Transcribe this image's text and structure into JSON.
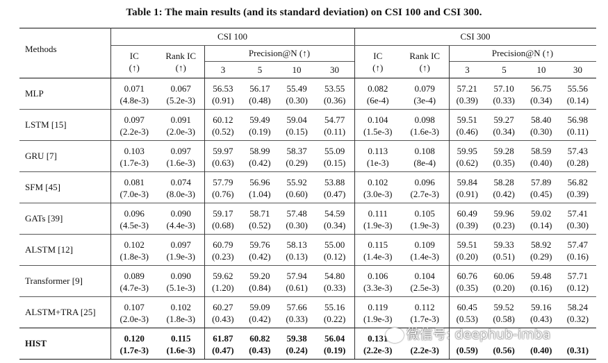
{
  "caption": "Table 1: The main results (and its standard deviation) on CSI 100 and CSI 300.",
  "header": {
    "methods": "Methods",
    "group1": "CSI 100",
    "group2": "CSI 300",
    "ic_line1": "IC",
    "ic_line2": "(↑)",
    "rankic_line1": "Rank IC",
    "rankic_line2": "(↑)",
    "precision": "Precision@N (↑)",
    "n": [
      "3",
      "5",
      "10",
      "30"
    ]
  },
  "rows": [
    {
      "method": "MLP",
      "vals": [
        [
          "0.071",
          "(4.8e-3)"
        ],
        [
          "0.067",
          "(5.2e-3)"
        ],
        [
          "56.53",
          "(0.91)"
        ],
        [
          "56.17",
          "(0.48)"
        ],
        [
          "55.49",
          "(0.30)"
        ],
        [
          "53.55",
          "(0.36)"
        ],
        [
          "0.082",
          "(6e-4)"
        ],
        [
          "0.079",
          "(3e-4)"
        ],
        [
          "57.21",
          "(0.39)"
        ],
        [
          "57.10",
          "(0.33)"
        ],
        [
          "56.75",
          "(0.34)"
        ],
        [
          "55.56",
          "(0.14)"
        ]
      ]
    },
    {
      "method": "LSTM [15]",
      "vals": [
        [
          "0.097",
          "(2.2e-3)"
        ],
        [
          "0.091",
          "(2.0e-3)"
        ],
        [
          "60.12",
          "(0.52)"
        ],
        [
          "59.49",
          "(0.19)"
        ],
        [
          "59.04",
          "(0.15)"
        ],
        [
          "54.77",
          "(0.11)"
        ],
        [
          "0.104",
          "(1.5e-3)"
        ],
        [
          "0.098",
          "(1.6e-3)"
        ],
        [
          "59.51",
          "(0.46)"
        ],
        [
          "59.27",
          "(0.34)"
        ],
        [
          "58.40",
          "(0.30)"
        ],
        [
          "56.98",
          "(0.11)"
        ]
      ]
    },
    {
      "method": "GRU [7]",
      "vals": [
        [
          "0.103",
          "(1.7e-3)"
        ],
        [
          "0.097",
          "(1.6e-3)"
        ],
        [
          "59.97",
          "(0.63)"
        ],
        [
          "58.99",
          "(0.42)"
        ],
        [
          "58.37",
          "(0.29)"
        ],
        [
          "55.09",
          "(0.15)"
        ],
        [
          "0.113",
          "(1e-3)"
        ],
        [
          "0.108",
          "(8e-4)"
        ],
        [
          "59.95",
          "(0.62)"
        ],
        [
          "59.28",
          "(0.35)"
        ],
        [
          "58.59",
          "(0.40)"
        ],
        [
          "57.43",
          "(0.28)"
        ]
      ]
    },
    {
      "method": "SFM [45]",
      "vals": [
        [
          "0.081",
          "(7.0e-3)"
        ],
        [
          "0.074",
          "(8.0e-3)"
        ],
        [
          "57.79",
          "(0.76)"
        ],
        [
          "56.96",
          "(1.04)"
        ],
        [
          "55.92",
          "(0.60)"
        ],
        [
          "53.88",
          "(0.47)"
        ],
        [
          "0.102",
          "(3.0e-3)"
        ],
        [
          "0.096",
          "(2.7e-3)"
        ],
        [
          "59.84",
          "(0.91)"
        ],
        [
          "58.28",
          "(0.42)"
        ],
        [
          "57.89",
          "(0.45)"
        ],
        [
          "56.82",
          "(0.39)"
        ]
      ]
    },
    {
      "method": "GATs [39]",
      "vals": [
        [
          "0.096",
          "(4.5e-3)"
        ],
        [
          "0.090",
          "(4.4e-3)"
        ],
        [
          "59.17",
          "(0.68)"
        ],
        [
          "58.71",
          "(0.52)"
        ],
        [
          "57.48",
          "(0.30)"
        ],
        [
          "54.59",
          "(0.34)"
        ],
        [
          "0.111",
          "(1.9e-3)"
        ],
        [
          "0.105",
          "(1.9e-3)"
        ],
        [
          "60.49",
          "(0.39)"
        ],
        [
          "59.96",
          "(0.23)"
        ],
        [
          "59.02",
          "(0.14)"
        ],
        [
          "57.41",
          "(0.30)"
        ]
      ]
    },
    {
      "method": "ALSTM [12]",
      "vals": [
        [
          "0.102",
          "(1.8e-3)"
        ],
        [
          "0.097",
          "(1.9e-3)"
        ],
        [
          "60.79",
          "(0.23)"
        ],
        [
          "59.76",
          "(0.42)"
        ],
        [
          "58.13",
          "(0.13)"
        ],
        [
          "55.00",
          "(0.12)"
        ],
        [
          "0.115",
          "(1.4e-3)"
        ],
        [
          "0.109",
          "(1.4e-3)"
        ],
        [
          "59.51",
          "(0.20)"
        ],
        [
          "59.33",
          "(0.51)"
        ],
        [
          "58.92",
          "(0.29)"
        ],
        [
          "57.47",
          "(0.16)"
        ]
      ]
    },
    {
      "method": "Transformer [9]",
      "vals": [
        [
          "0.089",
          "(4.7e-3)"
        ],
        [
          "0.090",
          "(5.1e-3)"
        ],
        [
          "59.62",
          "(1.20)"
        ],
        [
          "59.20",
          "(0.84)"
        ],
        [
          "57.94",
          "(0.61)"
        ],
        [
          "54.80",
          "(0.33)"
        ],
        [
          "0.106",
          "(3.3e-3)"
        ],
        [
          "0.104",
          "(2.5e-3)"
        ],
        [
          "60.76",
          "(0.35)"
        ],
        [
          "60.06",
          "(0.20)"
        ],
        [
          "59.48",
          "(0.16)"
        ],
        [
          "57.71",
          "(0.12)"
        ]
      ]
    },
    {
      "method": "ALSTM+TRA [25]",
      "vals": [
        [
          "0.107",
          "(2.0e-3)"
        ],
        [
          "0.102",
          "(1.8e-3)"
        ],
        [
          "60.27",
          "(0.43)"
        ],
        [
          "59.09",
          "(0.42)"
        ],
        [
          "57.66",
          "(0.33)"
        ],
        [
          "55.16",
          "(0.22)"
        ],
        [
          "0.119",
          "(1.9e-3)"
        ],
        [
          "0.112",
          "(1.7e-3)"
        ],
        [
          "60.45",
          "(0.53)"
        ],
        [
          "59.52",
          "(0.58)"
        ],
        [
          "59.16",
          "(0.43)"
        ],
        [
          "58.24",
          "(0.32)"
        ]
      ]
    },
    {
      "method": "HIST",
      "vals": [
        [
          "0.120",
          "(1.7e-3)"
        ],
        [
          "0.115",
          "(1.6e-3)"
        ],
        [
          "61.87",
          "(0.47)"
        ],
        [
          "60.82",
          "(0.43)"
        ],
        [
          "59.38",
          "(0.24)"
        ],
        [
          "56.04",
          "(0.19)"
        ],
        [
          "0.131",
          "(2.2e-3)"
        ],
        [
          "",
          "(2.2e-3)"
        ],
        [
          "",
          "(0.59)"
        ],
        [
          "",
          "(0.56)"
        ],
        [
          "",
          "(0.40)"
        ],
        [
          "",
          "(0.31)"
        ]
      ]
    }
  ],
  "watermark": "微信号: deephub-imba"
}
